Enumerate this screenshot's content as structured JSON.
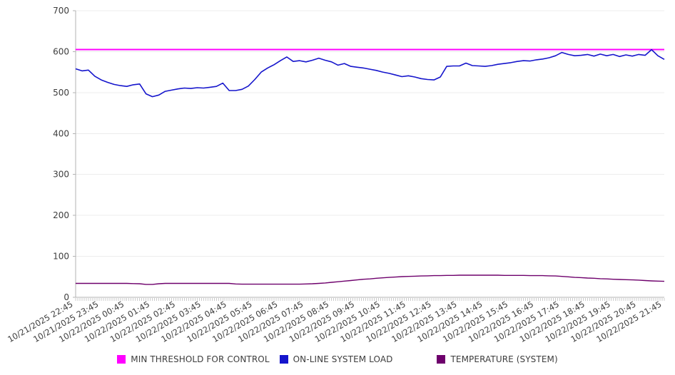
{
  "chart_data": {
    "type": "line",
    "title": "",
    "xlabel": "",
    "ylabel": "",
    "ylim": [
      0,
      700
    ],
    "y_ticks": [
      0,
      100,
      200,
      300,
      400,
      500,
      600,
      700
    ],
    "grid": "horizontal",
    "legend_position": "bottom",
    "points_per_label": 4,
    "x_tick_labels": [
      "10/21/2025 22:45",
      "10/21/2025 23:45",
      "10/22/2025 00:45",
      "10/22/2025 01:45",
      "10/22/2025 02:45",
      "10/22/2025 03:45",
      "10/22/2025 04:45",
      "10/22/2025 05:45",
      "10/22/2025 06:45",
      "10/22/2025 07:45",
      "10/22/2025 08:45",
      "10/22/2025 09:45",
      "10/22/2025 10:45",
      "10/22/2025 11:45",
      "10/22/2025 12:45",
      "10/22/2025 13:45",
      "10/22/2025 14:45",
      "10/22/2025 15:45",
      "10/22/2025 16:45",
      "10/22/2025 17:45",
      "10/22/2025 18:45",
      "10/22/2025 19:45",
      "10/22/2025 20:45",
      "10/22/2025 21:45"
    ],
    "series": [
      {
        "name": "MIN THRESHOLD FOR CONTROL",
        "color": "#ff00ff",
        "style": "threshold",
        "value": 605
      },
      {
        "name": "ON-LINE SYSTEM LOAD",
        "color": "#1515cc",
        "style": "line",
        "values": [
          558,
          553,
          555,
          540,
          531,
          525,
          520,
          517,
          515,
          519,
          521,
          497,
          490,
          494,
          503,
          506,
          509,
          511,
          510,
          512,
          511,
          513,
          515,
          523,
          505,
          505,
          508,
          516,
          532,
          550,
          560,
          568,
          578,
          587,
          576,
          578,
          575,
          579,
          584,
          579,
          575,
          567,
          571,
          564,
          562,
          560,
          557,
          554,
          550,
          547,
          543,
          539,
          541,
          538,
          534,
          532,
          531,
          538,
          564,
          565,
          565,
          572,
          566,
          565,
          564,
          566,
          569,
          571,
          573,
          576,
          578,
          577,
          580,
          582,
          585,
          590,
          598,
          593,
          590,
          591,
          593,
          589,
          594,
          590,
          593,
          588,
          592,
          589,
          593,
          591,
          605,
          590,
          581
        ]
      },
      {
        "name": "TEMPERATURE (SYSTEM)",
        "color": "#6e006c",
        "style": "line",
        "values": [
          34,
          34,
          34,
          34,
          34,
          34,
          34,
          34,
          34,
          33.5,
          33,
          31.5,
          31.5,
          33,
          34,
          34,
          34,
          34,
          34,
          34,
          34,
          34,
          34,
          34,
          34,
          32.5,
          32,
          32,
          32,
          32,
          32,
          32,
          32,
          32,
          32,
          32,
          32.5,
          33,
          34,
          35,
          36.5,
          38,
          39.5,
          41,
          42.5,
          44,
          45,
          46.5,
          47.5,
          48.5,
          49.5,
          50.5,
          51,
          51.5,
          52,
          52.5,
          53,
          53,
          53.5,
          53.5,
          54,
          54,
          54,
          54,
          54,
          54,
          54,
          53.5,
          53.5,
          53.5,
          53.5,
          53,
          53,
          53,
          52.5,
          52,
          51,
          50,
          48.5,
          48,
          47,
          46.5,
          45.5,
          45,
          44,
          43.5,
          43,
          42.5,
          42,
          41,
          40,
          39.5,
          39
        ]
      }
    ],
    "colors": {
      "axis": "#b3b3b3",
      "gridline": "#ececec",
      "tick_label": "#3d3d3d",
      "minor_tick": "#cccccc"
    }
  }
}
